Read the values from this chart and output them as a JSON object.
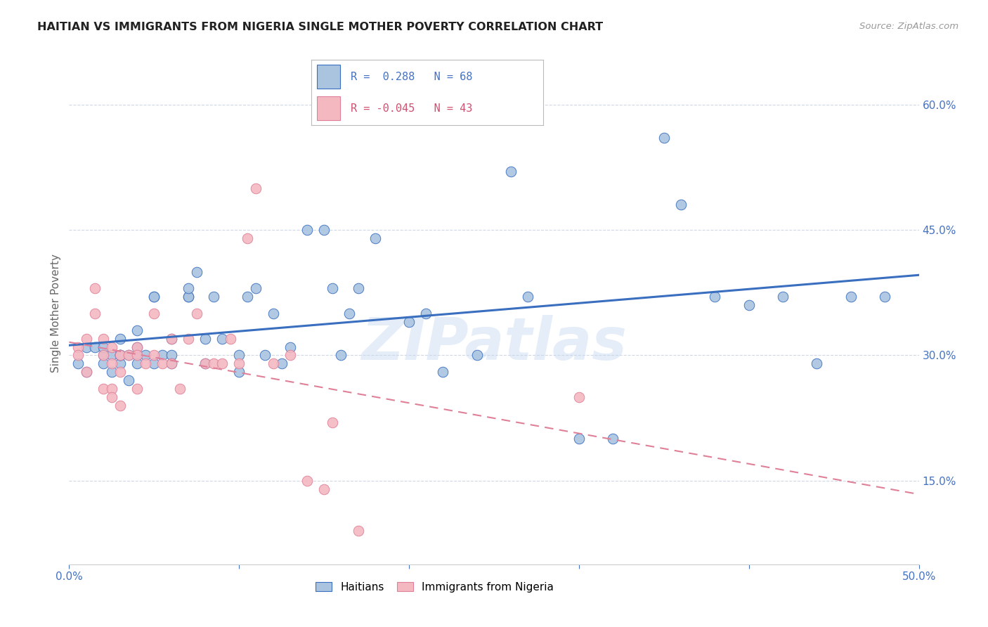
{
  "title": "HAITIAN VS IMMIGRANTS FROM NIGERIA SINGLE MOTHER POVERTY CORRELATION CHART",
  "source": "Source: ZipAtlas.com",
  "ylabel": "Single Mother Poverty",
  "xlim": [
    0.0,
    0.5
  ],
  "ylim": [
    0.05,
    0.65
  ],
  "yticks_right": [
    0.15,
    0.3,
    0.45,
    0.6
  ],
  "ytick_labels_right": [
    "15.0%",
    "30.0%",
    "45.0%",
    "60.0%"
  ],
  "blue_color": "#aac4e0",
  "pink_color": "#f4b8c1",
  "blue_line_color": "#3a6fbf",
  "pink_line_color": "#e08098",
  "text_blue": "#4472c4",
  "grid_color": "#d0d8e8",
  "background_color": "#ffffff",
  "watermark": "ZIPatlas",
  "haitian_x": [
    0.005,
    0.01,
    0.01,
    0.015,
    0.02,
    0.02,
    0.02,
    0.025,
    0.025,
    0.03,
    0.03,
    0.03,
    0.03,
    0.03,
    0.035,
    0.035,
    0.04,
    0.04,
    0.04,
    0.04,
    0.045,
    0.05,
    0.05,
    0.05,
    0.055,
    0.06,
    0.06,
    0.06,
    0.07,
    0.07,
    0.07,
    0.075,
    0.08,
    0.08,
    0.085,
    0.09,
    0.1,
    0.1,
    0.105,
    0.11,
    0.115,
    0.12,
    0.125,
    0.13,
    0.14,
    0.15,
    0.155,
    0.16,
    0.165,
    0.17,
    0.18,
    0.2,
    0.21,
    0.22,
    0.24,
    0.26,
    0.27,
    0.3,
    0.32,
    0.35,
    0.36,
    0.38,
    0.4,
    0.42,
    0.44,
    0.46,
    0.48
  ],
  "haitian_y": [
    0.29,
    0.28,
    0.31,
    0.31,
    0.3,
    0.29,
    0.31,
    0.3,
    0.28,
    0.29,
    0.3,
    0.3,
    0.32,
    0.3,
    0.27,
    0.3,
    0.3,
    0.29,
    0.31,
    0.33,
    0.3,
    0.29,
    0.37,
    0.37,
    0.3,
    0.3,
    0.32,
    0.29,
    0.37,
    0.37,
    0.38,
    0.4,
    0.32,
    0.29,
    0.37,
    0.32,
    0.3,
    0.28,
    0.37,
    0.38,
    0.3,
    0.35,
    0.29,
    0.31,
    0.45,
    0.45,
    0.38,
    0.3,
    0.35,
    0.38,
    0.44,
    0.34,
    0.35,
    0.28,
    0.3,
    0.52,
    0.37,
    0.2,
    0.2,
    0.56,
    0.48,
    0.37,
    0.36,
    0.37,
    0.29,
    0.37,
    0.37
  ],
  "nigeria_x": [
    0.005,
    0.005,
    0.01,
    0.01,
    0.015,
    0.015,
    0.02,
    0.02,
    0.02,
    0.025,
    0.025,
    0.025,
    0.025,
    0.03,
    0.03,
    0.03,
    0.035,
    0.04,
    0.04,
    0.04,
    0.045,
    0.05,
    0.05,
    0.055,
    0.06,
    0.06,
    0.065,
    0.07,
    0.075,
    0.08,
    0.085,
    0.09,
    0.095,
    0.1,
    0.105,
    0.11,
    0.12,
    0.13,
    0.14,
    0.15,
    0.155,
    0.17,
    0.3
  ],
  "nigeria_y": [
    0.31,
    0.3,
    0.32,
    0.28,
    0.35,
    0.38,
    0.3,
    0.32,
    0.26,
    0.26,
    0.29,
    0.31,
    0.25,
    0.24,
    0.28,
    0.3,
    0.3,
    0.31,
    0.26,
    0.3,
    0.29,
    0.3,
    0.35,
    0.29,
    0.29,
    0.32,
    0.26,
    0.32,
    0.35,
    0.29,
    0.29,
    0.29,
    0.32,
    0.29,
    0.44,
    0.5,
    0.29,
    0.3,
    0.15,
    0.14,
    0.22,
    0.09,
    0.25
  ]
}
